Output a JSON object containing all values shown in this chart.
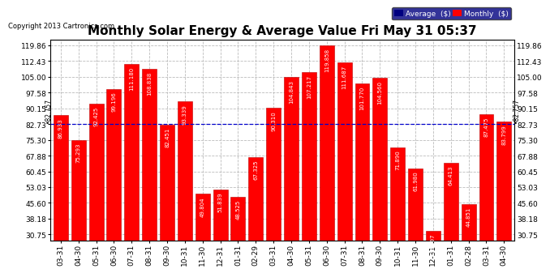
{
  "title": "Monthly Solar Energy & Average Value Fri May 31 05:37",
  "copyright": "Copyright 2013 Cartronics.com",
  "categories": [
    "03-31",
    "04-30",
    "05-31",
    "06-30",
    "07-31",
    "08-31",
    "09-30",
    "10-31",
    "11-30",
    "12-31",
    "01-31",
    "02-29",
    "03-31",
    "04-30",
    "05-31",
    "06-30",
    "07-31",
    "08-31",
    "09-30",
    "10-31",
    "11-30",
    "12-31",
    "01-31",
    "02-28",
    "03-31",
    "04-30"
  ],
  "values": [
    86.933,
    75.293,
    92.425,
    99.196,
    111.18,
    108.838,
    82.451,
    93.339,
    49.804,
    51.839,
    48.525,
    67.325,
    90.31,
    104.843,
    107.217,
    119.858,
    111.687,
    101.77,
    104.56,
    71.89,
    61.98,
    32.497,
    64.413,
    44.851,
    87.475,
    83.799
  ],
  "average_value": 82.757,
  "bar_color": "#ff0000",
  "avg_line_color": "#0000cd",
  "bar_edge_color": "#bb0000",
  "background_color": "#ffffff",
  "grid_color": "#bbbbbb",
  "yticks": [
    30.75,
    38.18,
    45.6,
    53.03,
    60.45,
    67.88,
    75.3,
    82.73,
    90.15,
    97.58,
    105.0,
    112.43,
    119.86
  ],
  "ymin": 28.0,
  "ymax": 122.5,
  "title_fontsize": 11,
  "tick_fontsize": 6.5,
  "label_fontsize": 5.0,
  "avg_label_fontsize": 5.5,
  "legend_avg_color": "#000080",
  "legend_monthly_color": "#ff0000"
}
